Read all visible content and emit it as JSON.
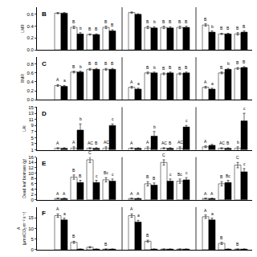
{
  "chart_data": [
    {
      "type": "bar",
      "title": "B",
      "ylabel": "LMR",
      "categories": [
        null,
        null,
        null,
        null,
        null,
        null,
        null,
        null,
        null,
        null,
        null
      ],
      "group_sizes": [
        4,
        4,
        3
      ],
      "ylim": [
        0.0,
        0.72
      ],
      "yticks": [
        {
          "value": 0.0,
          "label": "0.0"
        },
        0.2,
        0.4,
        0.6
      ],
      "grid": false,
      "tick_labels": "y",
      "series": [
        {
          "color": "white",
          "values": [
            0.62,
            0.38,
            0.26,
            0.38,
            0.63,
            0.38,
            0.38,
            0.38,
            0.42,
            0.27,
            0.27
          ],
          "errors": [
            0.01,
            0.02,
            0.01,
            0.02,
            0.01,
            0.02,
            0.02,
            0.02,
            0.02,
            0.01,
            0.02
          ],
          "annotations": [
            null,
            "B",
            "B",
            "B",
            null,
            "B",
            "B",
            "B",
            "B",
            "B",
            "B"
          ]
        },
        {
          "color": "black",
          "values": [
            0.62,
            0.27,
            0.26,
            0.32,
            0.6,
            0.37,
            0.37,
            0.38,
            0.3,
            0.27,
            0.3
          ],
          "errors": [
            0.01,
            0.02,
            0.01,
            0.02,
            0.01,
            0.02,
            0.02,
            0.02,
            0.02,
            0.01,
            0.02
          ],
          "annotations": [
            null,
            "b",
            "B",
            "B",
            null,
            "b",
            "B",
            "B",
            "b",
            "B",
            "B"
          ]
        }
      ]
    },
    {
      "type": "bar",
      "title": "C",
      "ylabel": "RMR",
      "categories": [
        null,
        null,
        null,
        null,
        null,
        null,
        null,
        null,
        null,
        null,
        null
      ],
      "group_sizes": [
        4,
        4,
        3
      ],
      "ylim": [
        0.0,
        0.95
      ],
      "yticks": [
        {
          "value": 0.0,
          "label": "0.0"
        },
        0.2,
        0.4,
        0.6,
        0.8
      ],
      "grid": false,
      "tick_labels": "y",
      "series": [
        {
          "color": "white",
          "values": [
            0.32,
            0.62,
            0.68,
            0.68,
            0.28,
            0.6,
            0.58,
            0.58,
            0.28,
            0.6,
            0.7
          ],
          "errors": [
            0.02,
            0.02,
            0.02,
            0.02,
            0.02,
            0.02,
            0.02,
            0.02,
            0.02,
            0.02,
            0.02
          ],
          "annotations": [
            "A",
            "B",
            "B",
            "B",
            "A",
            "B",
            "B",
            "B",
            "A",
            "B",
            "B"
          ]
        },
        {
          "color": "black",
          "values": [
            0.3,
            0.62,
            0.68,
            0.68,
            0.24,
            0.6,
            0.6,
            0.6,
            0.24,
            0.68,
            0.72
          ],
          "errors": [
            0.02,
            0.02,
            0.02,
            0.02,
            0.02,
            0.02,
            0.02,
            0.02,
            0.02,
            0.02,
            0.02
          ],
          "annotations": [
            "a",
            "b",
            "B",
            "B",
            "a",
            "b",
            "B",
            "B",
            "a",
            "b",
            "B"
          ]
        }
      ]
    },
    {
      "type": "bar",
      "title": "D",
      "ylabel": "LAI",
      "categories": [
        null,
        null,
        null,
        null,
        null,
        null,
        null,
        null,
        null,
        null,
        null
      ],
      "group_sizes": [
        4,
        4,
        3
      ],
      "ylim": [
        1,
        15
      ],
      "yticks": [
        1,
        3,
        5,
        7,
        9,
        11,
        13,
        15
      ],
      "grid": false,
      "tick_labels": "y",
      "series": [
        {
          "color": "white",
          "values": [
            1.5,
            1.5,
            1.5,
            1.5,
            1.5,
            1.5,
            1.5,
            1.5,
            2.0,
            1.5,
            1.5
          ],
          "errors": [
            0.2,
            0.5,
            0.2,
            0.5,
            0.2,
            0.5,
            0.2,
            0.5,
            0.3,
            0.2,
            0.5
          ],
          "annotations": [
            "A",
            "A",
            "AC",
            "AC",
            "A",
            "A",
            "AC",
            "AC",
            "A",
            "AC",
            "b"
          ]
        },
        {
          "color": "black",
          "values": [
            1.5,
            7.5,
            1.5,
            9.0,
            1.5,
            5.5,
            1.5,
            8.5,
            2.5,
            1.5,
            10.5
          ],
          "errors": [
            0.2,
            2.0,
            0.2,
            0.5,
            0.2,
            1.5,
            0.2,
            0.5,
            0.3,
            0.2,
            2.5
          ],
          "annotations": [
            null,
            "b",
            "B",
            "c",
            null,
            "b",
            "B",
            "c",
            null,
            "B",
            "c"
          ]
        }
      ]
    },
    {
      "type": "bar",
      "title": "E",
      "ylabel": "Dead leaf biomass (g)",
      "categories": [
        null,
        null,
        null,
        null,
        null,
        null,
        null,
        null,
        null,
        null,
        null
      ],
      "group_sizes": [
        4,
        4,
        3
      ],
      "ylim": [
        0,
        16
      ],
      "yticks": [
        0,
        2,
        4,
        6,
        8,
        10,
        12,
        14,
        16
      ],
      "grid": false,
      "tick_labels": "y",
      "series": [
        {
          "color": "white",
          "values": [
            0.5,
            8.5,
            15.0,
            7.5,
            0.5,
            6.0,
            14.0,
            7.0,
            0.5,
            6.0,
            13.0
          ],
          "errors": [
            0.1,
            0.8,
            1.0,
            0.8,
            0.1,
            0.8,
            1.0,
            0.8,
            0.1,
            0.8,
            1.0
          ],
          "annotations": [
            "A",
            "B",
            "C",
            "Bc",
            "A",
            "B",
            "C",
            "Bc",
            "A",
            "B",
            "C"
          ]
        },
        {
          "color": "black",
          "values": [
            0.5,
            6.5,
            6.5,
            7.0,
            0.5,
            5.5,
            7.0,
            7.5,
            0.5,
            6.5,
            10.5
          ],
          "errors": [
            0.1,
            0.8,
            0.8,
            0.8,
            0.1,
            0.8,
            0.8,
            0.8,
            0.1,
            0.8,
            1.2
          ],
          "annotations": [
            "A",
            "B",
            "c",
            "c",
            "A",
            "B",
            "c",
            "c",
            "A",
            "Bc",
            "c"
          ]
        }
      ]
    },
    {
      "type": "bar",
      "title": "F",
      "ylabel": "A\n(μmolCO₂ m⁻² s⁻¹)",
      "categories": [
        null,
        null,
        null,
        null,
        null,
        null,
        null,
        null,
        null,
        null,
        null
      ],
      "group_sizes": [
        4,
        4,
        3
      ],
      "ylim": [
        0,
        20
      ],
      "yticks": [
        0,
        5,
        10,
        15
      ],
      "grid": false,
      "tick_labels": "y",
      "series": [
        {
          "color": "white",
          "values": [
            16.0,
            3.5,
            1.2,
            0.3,
            16.0,
            4.0,
            0.3,
            0.3,
            15.5,
            3.0,
            0.3
          ],
          "errors": [
            0.8,
            0.5,
            0.3,
            0.05,
            0.8,
            0.5,
            0.05,
            0.05,
            0.8,
            0.5,
            0.05
          ],
          "annotations": [
            "A",
            "B",
            null,
            "B",
            "A",
            "B",
            null,
            null,
            "A",
            "B",
            "B"
          ]
        },
        {
          "color": "black",
          "values": [
            14.0,
            0.3,
            0.3,
            0.3,
            13.0,
            0.3,
            0.3,
            0.3,
            14.0,
            0.3,
            0.3
          ],
          "errors": [
            0.8,
            0.05,
            0.05,
            0.05,
            0.8,
            0.05,
            0.05,
            0.05,
            0.8,
            0.05,
            0.05
          ],
          "annotations": [
            "a",
            null,
            null,
            null,
            "a",
            null,
            null,
            null,
            "a",
            null,
            null
          ]
        }
      ]
    }
  ]
}
